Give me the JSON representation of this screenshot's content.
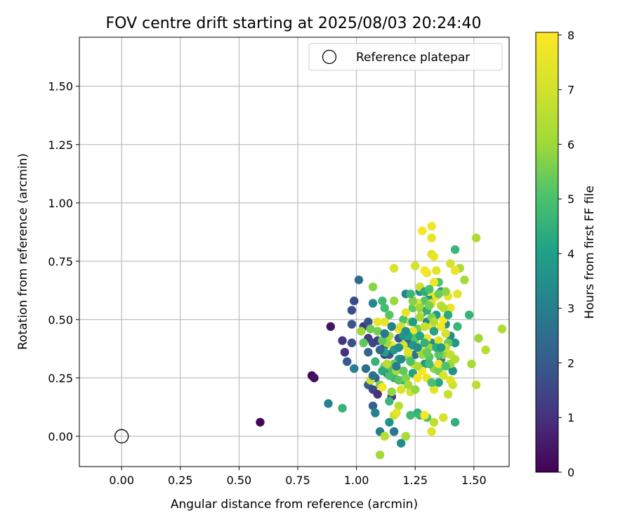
{
  "chart_data": {
    "type": "scatter",
    "title": "FOV centre drift starting at 2025/08/03 20:24:40",
    "xlabel": "Angular distance from reference (arcmin)",
    "ylabel": "Rotation from reference (arcmin)",
    "xlim": [
      -0.18,
      1.65
    ],
    "ylim": [
      -0.13,
      1.71
    ],
    "xticks": [
      "0.00",
      "0.25",
      "0.50",
      "0.75",
      "1.00",
      "1.25",
      "1.50"
    ],
    "yticks": [
      "0.00",
      "0.25",
      "0.50",
      "0.75",
      "1.00",
      "1.25",
      "1.50"
    ],
    "grid": true,
    "legend": {
      "position": "top-right",
      "entries": [
        "Reference platepar"
      ]
    },
    "reference_point": {
      "x": 0.0,
      "y": 0.0
    },
    "colorbar": {
      "label": "Hours from first FF file",
      "range": [
        0,
        8.05
      ],
      "ticks": [
        "0",
        "1",
        "2",
        "3",
        "4",
        "5",
        "6",
        "7",
        "8"
      ],
      "colormap": "viridis"
    },
    "points": [
      [
        0.59,
        0.06,
        0.1
      ],
      [
        0.81,
        0.26,
        0.2
      ],
      [
        0.82,
        0.25,
        0.3
      ],
      [
        0.89,
        0.47,
        0.4
      ],
      [
        0.95,
        0.36,
        1.0
      ],
      [
        0.94,
        0.41,
        1.1
      ],
      [
        0.96,
        0.32,
        2.0
      ],
      [
        0.98,
        0.54,
        1.6
      ],
      [
        0.99,
        0.58,
        1.6
      ],
      [
        0.98,
        0.48,
        1.9
      ],
      [
        0.98,
        0.4,
        1.8
      ],
      [
        1.03,
        0.47,
        1.2
      ],
      [
        1.05,
        0.42,
        1.3
      ],
      [
        1.07,
        0.4,
        1.5
      ],
      [
        1.09,
        0.41,
        1.4
      ],
      [
        1.05,
        0.49,
        1.8
      ],
      [
        1.01,
        0.67,
        2.5
      ],
      [
        1.07,
        0.57,
        3.3
      ],
      [
        0.99,
        0.29,
        3.0
      ],
      [
        1.04,
        0.29,
        2.5
      ],
      [
        1.05,
        0.22,
        2.2
      ],
      [
        1.07,
        0.2,
        1.5
      ],
      [
        1.08,
        0.25,
        2.0
      ],
      [
        1.09,
        0.18,
        1.0
      ],
      [
        1.12,
        0.35,
        1.3
      ],
      [
        1.12,
        0.39,
        1.6
      ],
      [
        1.14,
        0.35,
        1.9
      ],
      [
        1.15,
        0.17,
        1.2
      ],
      [
        1.13,
        0.27,
        2.3
      ],
      [
        1.07,
        0.13,
        2.2
      ],
      [
        1.08,
        0.1,
        3.1
      ],
      [
        1.1,
        0.02,
        3.0
      ],
      [
        1.16,
        0.02,
        2.8
      ],
      [
        1.19,
        -0.03,
        3.4
      ],
      [
        1.14,
        0.06,
        3.6
      ],
      [
        0.88,
        0.14,
        3.1
      ],
      [
        0.94,
        0.12,
        4.6
      ],
      [
        1.18,
        0.42,
        2.0
      ],
      [
        1.22,
        0.4,
        2.2
      ],
      [
        1.25,
        0.35,
        2.7
      ],
      [
        1.21,
        0.61,
        3.2
      ],
      [
        1.27,
        0.62,
        3.5
      ],
      [
        1.3,
        0.49,
        3.2
      ],
      [
        1.28,
        0.53,
        3.8
      ],
      [
        1.31,
        0.59,
        3.6
      ],
      [
        1.32,
        0.4,
        3.3
      ],
      [
        1.36,
        0.62,
        3.7
      ],
      [
        1.34,
        0.52,
        3.9
      ],
      [
        1.38,
        0.48,
        3.5
      ],
      [
        1.4,
        0.43,
        3.4
      ],
      [
        1.42,
        0.4,
        3.8
      ],
      [
        1.41,
        0.28,
        3.6
      ],
      [
        1.36,
        0.33,
        3.1
      ],
      [
        1.35,
        0.23,
        4.2
      ],
      [
        1.29,
        0.31,
        3.9
      ],
      [
        1.24,
        0.27,
        4.0
      ],
      [
        1.2,
        0.24,
        4.3
      ],
      [
        1.18,
        0.33,
        4.1
      ],
      [
        1.16,
        0.25,
        4.6
      ],
      [
        1.14,
        0.15,
        4.7
      ],
      [
        1.26,
        0.1,
        4.4
      ],
      [
        1.23,
        0.09,
        4.8
      ],
      [
        1.27,
        0.09,
        4.7
      ],
      [
        1.42,
        0.06,
        4.5
      ],
      [
        1.3,
        0.08,
        5.0
      ],
      [
        1.11,
        0.58,
        4.8
      ],
      [
        1.12,
        0.55,
        4.9
      ],
      [
        1.14,
        0.52,
        5.2
      ],
      [
        1.2,
        0.5,
        5.0
      ],
      [
        1.24,
        0.55,
        5.3
      ],
      [
        1.26,
        0.46,
        5.5
      ],
      [
        1.29,
        0.58,
        5.2
      ],
      [
        1.35,
        0.66,
        5.1
      ],
      [
        1.42,
        0.8,
        4.7
      ],
      [
        1.48,
        0.52,
        4.6
      ],
      [
        1.43,
        0.47,
        4.7
      ],
      [
        1.07,
        0.64,
        5.8
      ],
      [
        1.1,
        0.22,
        5.6
      ],
      [
        1.12,
        0.3,
        5.5
      ],
      [
        1.15,
        0.29,
        5.1
      ],
      [
        1.16,
        0.31,
        5.4
      ],
      [
        1.18,
        0.24,
        5.2
      ],
      [
        1.21,
        0.25,
        5.7
      ],
      [
        1.22,
        0.34,
        5.9
      ],
      [
        1.31,
        0.34,
        5.2
      ],
      [
        1.32,
        0.51,
        5.6
      ],
      [
        1.33,
        0.29,
        5.8
      ],
      [
        1.35,
        0.28,
        5.5
      ],
      [
        1.37,
        0.35,
        5.9
      ],
      [
        1.39,
        0.4,
        5.4
      ],
      [
        1.4,
        0.31,
        6.0
      ],
      [
        1.44,
        0.72,
        6.3
      ],
      [
        1.46,
        0.67,
        6.2
      ],
      [
        1.51,
        0.85,
        6.3
      ],
      [
        1.52,
        0.42,
        6.0
      ],
      [
        1.55,
        0.37,
        6.5
      ],
      [
        1.62,
        0.46,
        6.3
      ],
      [
        1.51,
        0.22,
        6.6
      ],
      [
        1.49,
        0.31,
        6.2
      ],
      [
        1.1,
        -0.08,
        6.1
      ],
      [
        1.12,
        0.0,
        6.5
      ],
      [
        1.21,
        0.0,
        6.2
      ],
      [
        1.16,
        0.09,
        6.8
      ],
      [
        1.18,
        0.13,
        6.5
      ],
      [
        1.23,
        0.19,
        7.0
      ],
      [
        1.06,
        0.24,
        6.9
      ],
      [
        1.27,
        0.37,
        6.9
      ],
      [
        1.39,
        0.18,
        6.8
      ],
      [
        1.41,
        0.22,
        6.9
      ],
      [
        1.33,
        0.06,
        6.6
      ],
      [
        1.37,
        0.08,
        7.1
      ],
      [
        1.32,
        0.02,
        7.3
      ],
      [
        1.16,
        0.72,
        7.2
      ],
      [
        1.25,
        0.73,
        7.0
      ],
      [
        1.27,
        0.64,
        6.9
      ],
      [
        1.32,
        0.57,
        7.3
      ],
      [
        1.34,
        0.6,
        7.5
      ],
      [
        1.39,
        0.6,
        7.6
      ],
      [
        1.42,
        0.71,
        7.6
      ],
      [
        1.4,
        0.74,
        7.0
      ],
      [
        1.3,
        0.7,
        7.6
      ],
      [
        1.34,
        0.71,
        7.4
      ],
      [
        1.09,
        0.49,
        7.6
      ],
      [
        1.12,
        0.49,
        7.5
      ],
      [
        1.15,
        0.39,
        7.8
      ],
      [
        1.18,
        0.46,
        7.7
      ],
      [
        1.21,
        0.53,
        7.5
      ],
      [
        1.24,
        0.45,
        7.6
      ],
      [
        1.26,
        0.57,
        7.2
      ],
      [
        1.28,
        0.54,
        7.8
      ],
      [
        1.31,
        0.62,
        7.9
      ],
      [
        1.33,
        0.66,
        7.7
      ],
      [
        1.36,
        0.47,
        7.8
      ],
      [
        1.37,
        0.5,
        7.9
      ],
      [
        1.4,
        0.55,
        7.6
      ],
      [
        1.43,
        0.61,
        7.4
      ],
      [
        1.3,
        0.42,
        7.7
      ],
      [
        1.32,
        0.47,
        7.5
      ],
      [
        1.35,
        0.41,
        7.3
      ],
      [
        1.38,
        0.44,
        7.0
      ],
      [
        1.2,
        0.39,
        7.0
      ],
      [
        1.22,
        0.36,
        7.2
      ],
      [
        1.24,
        0.31,
        7.5
      ],
      [
        1.26,
        0.25,
        7.8
      ],
      [
        1.28,
        0.28,
        7.9
      ],
      [
        1.3,
        0.25,
        7.6
      ],
      [
        1.33,
        0.2,
        7.4
      ],
      [
        1.35,
        0.31,
        7.7
      ],
      [
        1.37,
        0.26,
        7.1
      ],
      [
        1.4,
        0.24,
        7.3
      ],
      [
        1.11,
        0.21,
        7.9
      ],
      [
        1.17,
        0.1,
        7.5
      ],
      [
        1.19,
        0.2,
        7.2
      ],
      [
        1.28,
        0.88,
        7.9
      ],
      [
        1.32,
        0.9,
        7.8
      ],
      [
        1.32,
        0.85,
        7.5
      ],
      [
        1.32,
        0.78,
        7.3
      ],
      [
        1.33,
        0.77,
        7.6
      ],
      [
        1.29,
        0.71,
        7.9
      ],
      [
        1.29,
        0.09,
        7.9
      ],
      [
        1.26,
        0.3,
        6.3
      ],
      [
        1.28,
        0.35,
        6.0
      ],
      [
        1.31,
        0.38,
        6.1
      ],
      [
        1.23,
        0.49,
        6.4
      ],
      [
        1.25,
        0.4,
        6.5
      ],
      [
        1.21,
        0.44,
        6.7
      ],
      [
        1.19,
        0.47,
        6.9
      ],
      [
        1.27,
        0.51,
        6.2
      ],
      [
        1.29,
        0.47,
        6.8
      ],
      [
        1.33,
        0.49,
        6.4
      ],
      [
        1.36,
        0.56,
        6.6
      ],
      [
        1.38,
        0.38,
        6.7
      ],
      [
        1.14,
        0.43,
        6.3
      ],
      [
        1.13,
        0.4,
        6.1
      ],
      [
        1.16,
        0.58,
        6.0
      ],
      [
        1.24,
        0.58,
        5.7
      ],
      [
        1.27,
        0.55,
        6.0
      ],
      [
        1.13,
        0.31,
        6.5
      ],
      [
        1.15,
        0.19,
        5.9
      ],
      [
        1.17,
        0.28,
        6.2
      ],
      [
        1.22,
        0.22,
        6.1
      ],
      [
        1.25,
        0.2,
        5.9
      ],
      [
        1.09,
        0.45,
        5.5
      ],
      [
        1.11,
        0.41,
        5.3
      ],
      [
        1.14,
        0.26,
        5.0
      ],
      [
        1.2,
        0.28,
        5.3
      ],
      [
        1.23,
        0.32,
        5.0
      ],
      [
        1.25,
        0.42,
        5.1
      ],
      [
        1.3,
        0.36,
        5.4
      ],
      [
        1.32,
        0.23,
        5.0
      ],
      [
        1.35,
        0.35,
        5.2
      ],
      [
        1.38,
        0.3,
        5.1
      ],
      [
        1.02,
        0.45,
        6.0
      ],
      [
        1.03,
        0.4,
        5.3
      ],
      [
        1.06,
        0.46,
        5.5
      ],
      [
        1.08,
        0.32,
        4.6
      ],
      [
        1.11,
        0.28,
        4.3
      ],
      [
        1.12,
        0.36,
        4.0
      ],
      [
        1.16,
        0.37,
        3.8
      ],
      [
        1.18,
        0.38,
        3.4
      ],
      [
        1.2,
        0.43,
        3.6
      ],
      [
        1.22,
        0.43,
        4.0
      ],
      [
        1.24,
        0.49,
        3.9
      ],
      [
        1.27,
        0.43,
        4.2
      ],
      [
        1.3,
        0.54,
        4.4
      ],
      [
        1.33,
        0.45,
        4.1
      ],
      [
        1.34,
        0.38,
        4.4
      ],
      [
        1.36,
        0.38,
        3.9
      ],
      [
        1.39,
        0.52,
        4.3
      ],
      [
        1.05,
        0.36,
        2.3
      ],
      [
        1.07,
        0.26,
        2.6
      ],
      [
        1.1,
        0.37,
        2.4
      ],
      [
        1.12,
        0.44,
        2.8
      ],
      [
        1.15,
        0.47,
        3.0
      ],
      [
        1.17,
        0.3,
        2.9
      ],
      [
        1.19,
        0.33,
        3.3
      ],
      [
        1.21,
        0.45,
        3.5
      ],
      [
        1.24,
        0.39,
        3.7
      ],
      [
        1.26,
        0.38,
        3.4
      ],
      [
        1.29,
        0.4,
        4.5
      ],
      [
        1.31,
        0.31,
        4.9
      ],
      [
        1.23,
        0.61,
        4.7
      ],
      [
        1.29,
        0.62,
        4.4
      ],
      [
        1.31,
        0.63,
        5.0
      ],
      [
        1.35,
        0.61,
        5.4
      ],
      [
        1.38,
        0.62,
        5.8
      ],
      [
        1.31,
        0.56,
        5.6
      ],
      [
        1.37,
        0.55,
        6.4
      ],
      [
        1.4,
        0.35,
        6.7
      ],
      [
        1.42,
        0.33,
        6.4
      ]
    ]
  }
}
